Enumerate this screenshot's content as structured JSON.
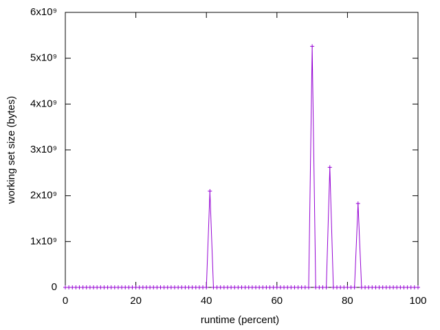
{
  "chart_data": {
    "type": "line",
    "xlabel": "runtime (percent)",
    "ylabel": "working set size (bytes)",
    "x": [
      0,
      1,
      2,
      3,
      4,
      5,
      6,
      7,
      8,
      9,
      10,
      11,
      12,
      13,
      14,
      15,
      16,
      17,
      18,
      19,
      20,
      21,
      22,
      23,
      24,
      25,
      26,
      27,
      28,
      29,
      30,
      31,
      32,
      33,
      34,
      35,
      36,
      37,
      38,
      39,
      40,
      41,
      42,
      43,
      44,
      45,
      46,
      47,
      48,
      49,
      50,
      51,
      52,
      53,
      54,
      55,
      56,
      57,
      58,
      59,
      60,
      61,
      62,
      63,
      64,
      65,
      66,
      67,
      68,
      69,
      70,
      71,
      72,
      73,
      74,
      75,
      76,
      77,
      78,
      79,
      80,
      81,
      82,
      83,
      84,
      85,
      86,
      87,
      88,
      89,
      90,
      91,
      92,
      93,
      94,
      95,
      96,
      97,
      98,
      99,
      100
    ],
    "values": [
      0,
      0,
      0,
      0,
      0,
      0,
      0,
      0,
      0,
      0,
      0,
      0,
      0,
      0,
      0,
      0,
      0,
      0,
      0,
      0,
      0,
      0,
      0,
      0,
      0,
      0,
      0,
      0,
      0,
      0,
      0,
      0,
      0,
      0,
      0,
      0,
      0,
      0,
      0,
      0,
      0,
      2100000000,
      0,
      0,
      0,
      0,
      0,
      0,
      0,
      0,
      0,
      0,
      0,
      0,
      0,
      0,
      0,
      0,
      0,
      0,
      0,
      0,
      0,
      0,
      0,
      0,
      0,
      0,
      0,
      0,
      5260000000,
      0,
      0,
      0,
      0,
      2620000000,
      0,
      0,
      0,
      0,
      0,
      0,
      0,
      1830000000,
      0,
      0,
      0,
      0,
      0,
      0,
      0,
      0,
      0,
      0,
      0,
      0,
      0,
      0,
      0,
      0,
      0
    ],
    "color": "#9400d3",
    "xlim": [
      0,
      100
    ],
    "xticks": [
      0,
      20,
      40,
      60,
      80,
      100
    ],
    "ylim": [
      0,
      6000000000
    ],
    "yticks": [
      0,
      {
        "value": 1000000000,
        "label": "1x10⁹"
      },
      {
        "value": 2000000000,
        "label": "2x10⁹"
      },
      {
        "value": 3000000000,
        "label": "3x10⁹"
      },
      {
        "value": 4000000000,
        "label": "4x10⁹"
      },
      {
        "value": 5000000000,
        "label": "5x10⁹"
      },
      {
        "value": 6000000000,
        "label": "6x10⁹"
      }
    ]
  }
}
